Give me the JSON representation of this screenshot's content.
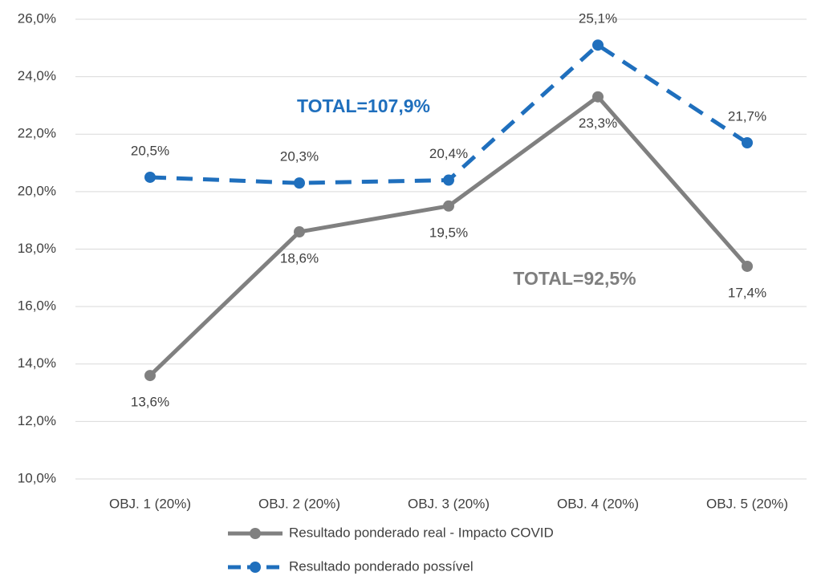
{
  "chart_data": {
    "type": "line",
    "categories": [
      "OBJ. 1 (20%)",
      "OBJ. 2 (20%)",
      "OBJ. 3 (20%)",
      "OBJ. 4 (20%)",
      "OBJ. 5 (20%)"
    ],
    "series": [
      {
        "name": "Resultado ponderado real - Impacto COVID",
        "color": "#808080",
        "dashed": false,
        "values": [
          13.6,
          18.6,
          19.5,
          23.3,
          17.4
        ],
        "value_labels": [
          "13,6%",
          "18,6%",
          "19,5%",
          "23,3%",
          "17,4%"
        ]
      },
      {
        "name": "Resultado ponderado possível",
        "color": "#1f6fbd",
        "dashed": true,
        "values": [
          20.5,
          20.3,
          20.4,
          25.1,
          21.7
        ],
        "value_labels": [
          "20,5%",
          "20,3%",
          "20,4%",
          "25,1%",
          "21,7%"
        ]
      }
    ],
    "ylim": [
      10,
      26
    ],
    "yticks": [
      {
        "value": 10,
        "label": "10,0%"
      },
      {
        "value": 12,
        "label": "12,0%"
      },
      {
        "value": 14,
        "label": "14,0%"
      },
      {
        "value": 16,
        "label": "16,0%"
      },
      {
        "value": 18,
        "label": "18,0%"
      },
      {
        "value": 20,
        "label": "20,0%"
      },
      {
        "value": 22,
        "label": "22,0%"
      },
      {
        "value": 24,
        "label": "24,0%"
      },
      {
        "value": 26,
        "label": "26,0%"
      }
    ],
    "grid": true,
    "legend": "bottom",
    "annotations": [
      {
        "text": "TOTAL=107,9%",
        "color": "#1f6fbd"
      },
      {
        "text": "TOTAL=92,5%",
        "color": "#7f7f7f"
      }
    ]
  }
}
